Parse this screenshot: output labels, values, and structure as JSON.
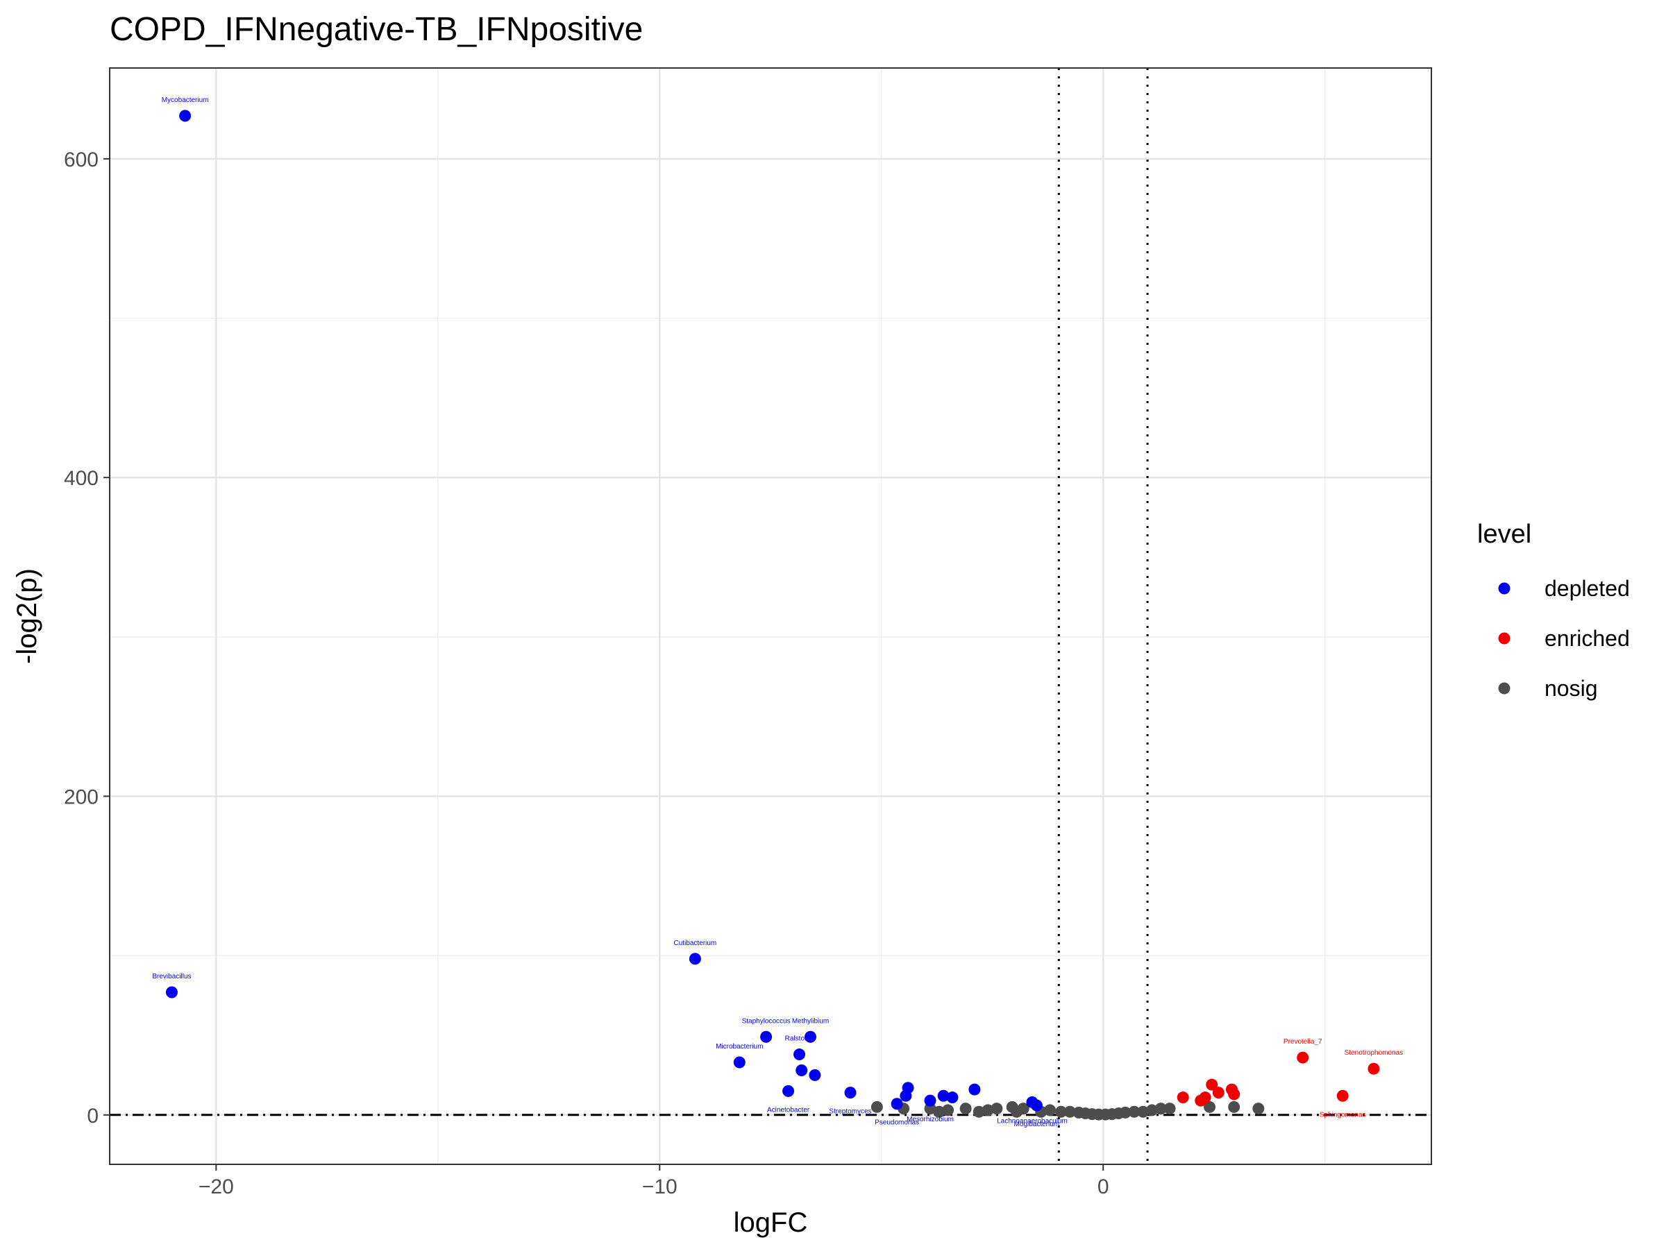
{
  "chart_data": {
    "type": "scatter",
    "title": "COPD_IFNnegative-TB_IFNpositive",
    "xlabel": "logFC",
    "ylabel": "-log2(p)",
    "xlim": [
      -22.4,
      7.4
    ],
    "ylim": [
      -31,
      657
    ],
    "xticks": [
      -20,
      -10,
      0
    ],
    "yticks": [
      0,
      200,
      400,
      600
    ],
    "grid": true,
    "vlines": [
      -1,
      1
    ],
    "hline": 0,
    "legend": {
      "title": "level",
      "position": "right",
      "entries": [
        {
          "key": "depleted",
          "label": "depleted",
          "color": "#0000ee"
        },
        {
          "key": "enriched",
          "label": "enriched",
          "color": "#ee0000"
        },
        {
          "key": "nosig",
          "label": "nosig",
          "color": "#4d4d4d"
        }
      ]
    },
    "points": [
      {
        "x": -20.7,
        "y": 627,
        "level": "depleted",
        "label": "Mycobacterium"
      },
      {
        "x": -21.0,
        "y": 77,
        "level": "depleted",
        "label": "Brevibacillus"
      },
      {
        "x": -9.2,
        "y": 98,
        "level": "depleted",
        "label": "Cutibacterium"
      },
      {
        "x": -7.6,
        "y": 49,
        "level": "depleted",
        "label": "Staphylococcus"
      },
      {
        "x": -6.6,
        "y": 49,
        "level": "depleted",
        "label": "Methylibium"
      },
      {
        "x": -6.85,
        "y": 38,
        "level": "depleted",
        "label": "Ralstonia"
      },
      {
        "x": -8.2,
        "y": 33,
        "level": "depleted",
        "label": "Microbacterium"
      },
      {
        "x": -6.8,
        "y": 28,
        "level": "depleted",
        "label": ""
      },
      {
        "x": -6.5,
        "y": 25,
        "level": "depleted",
        "label": ""
      },
      {
        "x": -7.1,
        "y": 15,
        "level": "depleted",
        "label": "Acinetobacter"
      },
      {
        "x": -5.7,
        "y": 14,
        "level": "depleted",
        "label": "Streptomyces"
      },
      {
        "x": -4.4,
        "y": 17,
        "level": "depleted",
        "label": ""
      },
      {
        "x": -4.45,
        "y": 12,
        "level": "depleted",
        "label": ""
      },
      {
        "x": -3.6,
        "y": 12,
        "level": "depleted",
        "label": ""
      },
      {
        "x": -3.4,
        "y": 11,
        "level": "depleted",
        "label": ""
      },
      {
        "x": -2.9,
        "y": 16,
        "level": "depleted",
        "label": ""
      },
      {
        "x": -4.65,
        "y": 7,
        "level": "depleted",
        "label": "Pseudomonas"
      },
      {
        "x": -3.9,
        "y": 9,
        "level": "depleted",
        "label": "Mesorhizobium"
      },
      {
        "x": -1.6,
        "y": 8,
        "level": "depleted",
        "label": "Lachnoanaerobaculum"
      },
      {
        "x": -1.5,
        "y": 6,
        "level": "depleted",
        "label": "Mogibacterium"
      },
      {
        "x": 1.8,
        "y": 11,
        "level": "enriched",
        "label": ""
      },
      {
        "x": 2.2,
        "y": 9,
        "level": "enriched",
        "label": ""
      },
      {
        "x": 2.3,
        "y": 11,
        "level": "enriched",
        "label": ""
      },
      {
        "x": 2.45,
        "y": 19,
        "level": "enriched",
        "label": ""
      },
      {
        "x": 2.6,
        "y": 14,
        "level": "enriched",
        "label": ""
      },
      {
        "x": 2.9,
        "y": 16,
        "level": "enriched",
        "label": ""
      },
      {
        "x": 2.95,
        "y": 13,
        "level": "enriched",
        "label": ""
      },
      {
        "x": 4.5,
        "y": 36,
        "level": "enriched",
        "label": "Prevotella_7"
      },
      {
        "x": 6.1,
        "y": 29,
        "level": "enriched",
        "label": "Stenotrophomonas"
      },
      {
        "x": 5.4,
        "y": 12,
        "level": "enriched",
        "label": "Sphingomonas"
      },
      {
        "x": -5.1,
        "y": 5,
        "level": "nosig",
        "label": ""
      },
      {
        "x": -4.5,
        "y": 4,
        "level": "nosig",
        "label": ""
      },
      {
        "x": -3.9,
        "y": 4,
        "level": "nosig",
        "label": ""
      },
      {
        "x": -3.7,
        "y": 2,
        "level": "nosig",
        "label": ""
      },
      {
        "x": -3.5,
        "y": 3,
        "level": "nosig",
        "label": ""
      },
      {
        "x": -3.1,
        "y": 4,
        "level": "nosig",
        "label": ""
      },
      {
        "x": -2.8,
        "y": 2,
        "level": "nosig",
        "label": ""
      },
      {
        "x": -2.6,
        "y": 3,
        "level": "nosig",
        "label": ""
      },
      {
        "x": -2.4,
        "y": 4,
        "level": "nosig",
        "label": ""
      },
      {
        "x": -2.05,
        "y": 5,
        "level": "nosig",
        "label": ""
      },
      {
        "x": -1.95,
        "y": 2,
        "level": "nosig",
        "label": ""
      },
      {
        "x": -1.8,
        "y": 4,
        "level": "nosig",
        "label": ""
      },
      {
        "x": -1.4,
        "y": 2,
        "level": "nosig",
        "label": ""
      },
      {
        "x": -1.2,
        "y": 3,
        "level": "nosig",
        "label": ""
      },
      {
        "x": -0.95,
        "y": 2,
        "level": "nosig",
        "label": ""
      },
      {
        "x": -0.75,
        "y": 2,
        "level": "nosig",
        "label": ""
      },
      {
        "x": -0.55,
        "y": 1.5,
        "level": "nosig",
        "label": ""
      },
      {
        "x": -0.4,
        "y": 1,
        "level": "nosig",
        "label": ""
      },
      {
        "x": -0.25,
        "y": 0.5,
        "level": "nosig",
        "label": ""
      },
      {
        "x": -0.1,
        "y": 0.3,
        "level": "nosig",
        "label": ""
      },
      {
        "x": 0.05,
        "y": 0.3,
        "level": "nosig",
        "label": ""
      },
      {
        "x": 0.2,
        "y": 0.5,
        "level": "nosig",
        "label": ""
      },
      {
        "x": 0.35,
        "y": 1,
        "level": "nosig",
        "label": ""
      },
      {
        "x": 0.5,
        "y": 1.5,
        "level": "nosig",
        "label": ""
      },
      {
        "x": 0.7,
        "y": 2,
        "level": "nosig",
        "label": ""
      },
      {
        "x": 0.9,
        "y": 2,
        "level": "nosig",
        "label": ""
      },
      {
        "x": 1.1,
        "y": 3,
        "level": "nosig",
        "label": ""
      },
      {
        "x": 1.3,
        "y": 4,
        "level": "nosig",
        "label": ""
      },
      {
        "x": 1.5,
        "y": 4,
        "level": "nosig",
        "label": ""
      },
      {
        "x": 2.4,
        "y": 5,
        "level": "nosig",
        "label": ""
      },
      {
        "x": 2.95,
        "y": 5,
        "level": "nosig",
        "label": ""
      },
      {
        "x": 3.5,
        "y": 4,
        "level": "nosig",
        "label": ""
      }
    ]
  }
}
